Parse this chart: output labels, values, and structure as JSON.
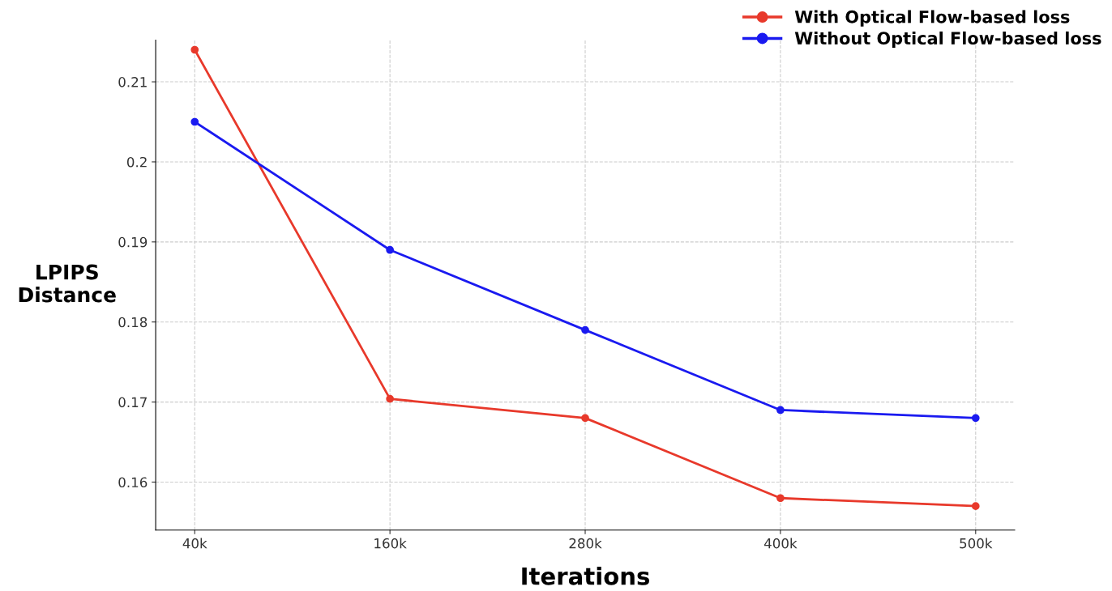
{
  "chart_data": {
    "type": "line",
    "xlabel": "Iterations",
    "ylabel": "LPIPS\nDistance",
    "categories": [
      "40k",
      "160k",
      "280k",
      "400k",
      "500k"
    ],
    "series": [
      {
        "name": "With Optical Flow-based loss",
        "color": "#e8392b",
        "values": [
          0.214,
          0.1704,
          0.168,
          0.158,
          0.157
        ]
      },
      {
        "name": "Without Optical Flow-based loss",
        "color": "#1a1af0",
        "values": [
          0.205,
          0.189,
          0.179,
          0.169,
          0.168
        ]
      }
    ],
    "ylim": [
      0.154,
      0.2152
    ],
    "yticks": [
      0.16,
      0.17,
      0.18,
      0.19,
      0.2,
      0.21
    ],
    "grid": true,
    "legend": "top right",
    "marker": "circle",
    "line_style": "solid"
  }
}
